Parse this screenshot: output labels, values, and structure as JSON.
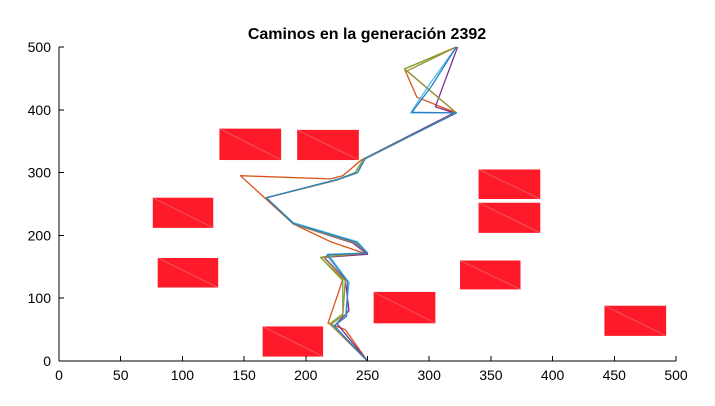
{
  "chart_data": {
    "type": "line",
    "title": "Caminos en la generación 2392",
    "xlabel": "",
    "ylabel": "",
    "xlim": [
      0,
      500
    ],
    "ylim": [
      0,
      500
    ],
    "xticks": [
      0,
      50,
      100,
      150,
      200,
      250,
      300,
      350,
      400,
      450,
      500
    ],
    "yticks": [
      0,
      100,
      200,
      300,
      400,
      500
    ],
    "grid": false,
    "legend": "none",
    "obstacles": [
      {
        "x": [
          130,
          180
        ],
        "y": [
          320,
          370
        ],
        "color": "#ff1a2a"
      },
      {
        "x": [
          193,
          243
        ],
        "y": [
          320,
          368
        ],
        "color": "#ff1a2a"
      },
      {
        "x": [
          76,
          125
        ],
        "y": [
          212,
          260
        ],
        "color": "#ff1a2a"
      },
      {
        "x": [
          80,
          129
        ],
        "y": [
          117,
          164
        ],
        "color": "#ff1a2a"
      },
      {
        "x": [
          340,
          390
        ],
        "y": [
          258,
          305
        ],
        "color": "#ff1a2a"
      },
      {
        "x": [
          340,
          390
        ],
        "y": [
          204,
          252
        ],
        "color": "#ff1a2a"
      },
      {
        "x": [
          325,
          374
        ],
        "y": [
          114,
          160
        ],
        "color": "#ff1a2a"
      },
      {
        "x": [
          255,
          305
        ],
        "y": [
          60,
          110
        ],
        "color": "#ff1a2a"
      },
      {
        "x": [
          165,
          214
        ],
        "y": [
          7,
          55
        ],
        "color": "#ff1a2a"
      },
      {
        "x": [
          442,
          492
        ],
        "y": [
          40,
          88
        ],
        "color": "#ff1a2a"
      }
    ],
    "series": [
      {
        "color": "#d95319",
        "x": [
          250,
          232,
          218,
          230,
          212,
          250,
          220,
          190,
          147,
          220,
          230,
          245,
          322,
          290,
          280,
          322
        ],
        "y": [
          0,
          50,
          60,
          130,
          165,
          170,
          190,
          218,
          295,
          290,
          295,
          320,
          395,
          420,
          465,
          500
        ]
      },
      {
        "color": "#7e2f8e",
        "x": [
          250,
          225,
          235,
          232,
          215,
          250,
          238,
          190,
          168,
          225,
          240,
          247,
          320,
          305,
          323
        ],
        "y": [
          0,
          60,
          80,
          130,
          165,
          170,
          188,
          218,
          260,
          288,
          300,
          322,
          395,
          405,
          500
        ]
      },
      {
        "color": "#77ac30",
        "x": [
          250,
          220,
          230,
          230,
          212,
          250,
          240,
          190,
          168,
          225,
          240,
          247,
          322,
          280,
          322
        ],
        "y": [
          0,
          60,
          75,
          128,
          165,
          172,
          188,
          218,
          260,
          288,
          300,
          322,
          395,
          465,
          500
        ]
      },
      {
        "color": "#4dbeee",
        "x": [
          250,
          222,
          232,
          235,
          218,
          250,
          242,
          190,
          168,
          228,
          242,
          248,
          322,
          285,
          300,
          322
        ],
        "y": [
          0,
          55,
          70,
          125,
          170,
          172,
          190,
          220,
          260,
          290,
          300,
          322,
          395,
          395,
          440,
          500
        ]
      },
      {
        "color": "#a08c3c",
        "x": [
          250,
          220,
          230,
          232,
          214,
          250,
          240,
          190,
          168,
          226,
          242,
          248,
          322,
          282,
          322
        ],
        "y": [
          0,
          58,
          72,
          128,
          166,
          172,
          188,
          218,
          260,
          289,
          300,
          322,
          395,
          462,
          500
        ]
      },
      {
        "color": "#2f7fc0",
        "x": [
          250,
          223,
          233,
          234,
          217,
          250,
          241,
          190,
          168,
          227,
          242,
          248,
          322,
          286,
          302,
          322
        ],
        "y": [
          0,
          56,
          71,
          126,
          169,
          172,
          189,
          219,
          260,
          290,
          300,
          322,
          395,
          396,
          438,
          500
        ]
      }
    ]
  }
}
